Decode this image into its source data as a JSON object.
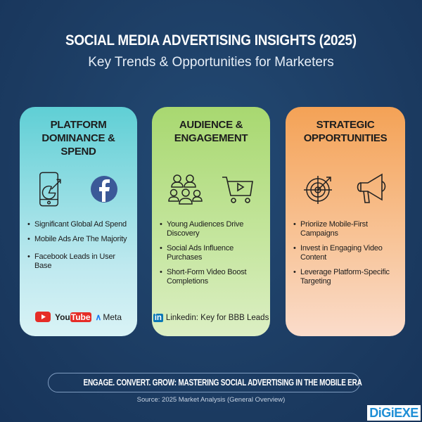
{
  "header": {
    "title": "SOCIAL MEDIA ADVERTISING INSIGHTS (2025)",
    "subtitle": "Key Trends & Opportunities for Marketers"
  },
  "cards": [
    {
      "title": "PLATFORM DOMINANCE & SPEND",
      "icons": [
        "mobile-chart-icon",
        "facebook-icon"
      ],
      "bullets": [
        "Significant Global Ad Spend",
        "Mobile Ads Are The Majority",
        "Facebook Leads in User Base"
      ],
      "brands": {
        "youtube_you": "You",
        "youtube_tube": "Tube",
        "meta": "Meta"
      }
    },
    {
      "title": "AUDIENCE & ENGAGEMENT",
      "icons": [
        "audience-group-icon",
        "shopping-cart-video-icon"
      ],
      "bullets": [
        "Young Audiences Drive Discovery",
        "Social Ads Influence Purchases",
        "Short-Form Video Boost Completions"
      ],
      "linkedin": "Linkedin: Key for BBB Leads"
    },
    {
      "title": "STRATEGIC OPPORTUNITIES",
      "icons": [
        "target-icon",
        "megaphone-icon"
      ],
      "bullets": [
        "Prioriize Mobile-First Campaigns",
        "Invest in Engaging Video Content",
        "Leverage Platform-Specific Targeting"
      ]
    }
  ],
  "footer": {
    "banner": "ENGAGE. CONVERT. GROW: MASTERING SOCIAL ADVERTISING IN THE MOBILE ERA",
    "source": "Source: 2025 Market Analysis (General Overview)",
    "logo": "DiGiEXE"
  },
  "colors": {
    "background": "#1d3f66",
    "card1": "#5fcfd5",
    "card2": "#a8d870",
    "card3": "#f4a256",
    "facebook": "#3b5998",
    "youtube": "#e52d27",
    "linkedin": "#0a77b5"
  }
}
